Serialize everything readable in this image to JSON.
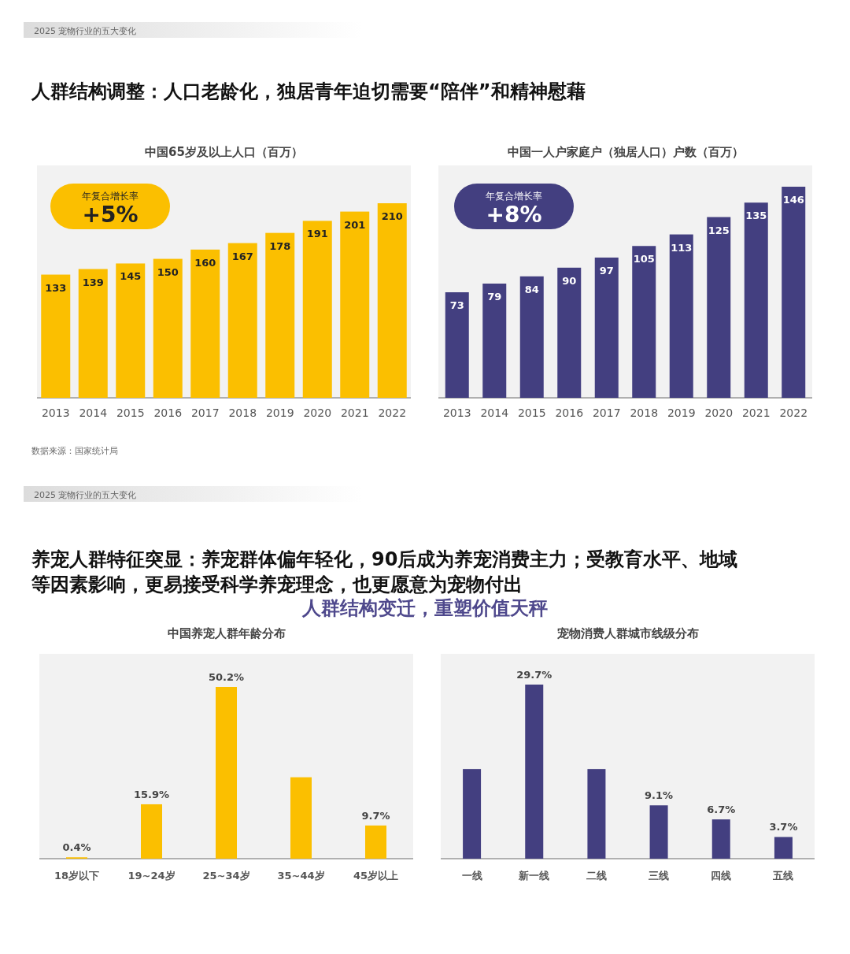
{
  "chart_data": [
    {
      "type": "bar",
      "title": "中国65岁及以上人口（百万）",
      "categories": [
        "2013",
        "2014",
        "2015",
        "2016",
        "2017",
        "2018",
        "2019",
        "2020",
        "2021",
        "2022"
      ],
      "values": [
        133,
        139,
        145,
        150,
        160,
        167,
        178,
        191,
        201,
        210
      ],
      "color": "#fbbf00",
      "data_labels": true,
      "grid": false,
      "annotations": [
        "2025 宠物行业的五大变化",
        "人群结构调整：人口老龄化，独居青年迫切需要“陪伴”和精神慰藉",
        "年复合增长率",
        "+5%"
      ]
    },
    {
      "type": "bar",
      "title": "中国一人户家庭户（独居人口）户数（百万）",
      "categories": [
        "2013",
        "2014",
        "2015",
        "2016",
        "2017",
        "2018",
        "2019",
        "2020",
        "2021",
        "2022"
      ],
      "values": [
        73,
        79,
        84,
        90,
        97,
        105,
        113,
        125,
        135,
        146
      ],
      "color": "#433f80",
      "data_labels": true,
      "grid": false,
      "annotations": [
        "年复合增长率",
        "+8%",
        "数据来源：国家统计局"
      ]
    },
    {
      "type": "bar",
      "title": "中国养宠人群年龄分布",
      "categories": [
        "18岁以下",
        "19~24岁",
        "25~34岁",
        "35~44岁",
        "45岁以上"
      ],
      "values": [
        0.4,
        15.9,
        50.2,
        23.8,
        9.7
      ],
      "value_labels": [
        "0.4%",
        "15.9%",
        "50.2%",
        null,
        "9.7%"
      ],
      "color": "#fbbf00",
      "grid": false,
      "annotations": [
        "2025 宠物行业的五大变化",
        "养宠人群特征突显：养宠群体偏年轻化，90后成为养宠消费主力；受教育水平、地域等因素影响，更易接受科学养宠理念，也更愿意为宠物付出",
        "人群结构变迁，重塑价值天秤"
      ]
    },
    {
      "type": "bar",
      "title": "宠物消费人群城市线级分布",
      "categories": [
        "一线",
        "新一线",
        "二线",
        "三线",
        "四线",
        "五线"
      ],
      "values": [
        15.3,
        29.7,
        15.3,
        9.1,
        6.7,
        3.7
      ],
      "value_labels": [
        null,
        "29.7%",
        null,
        "9.1%",
        "6.7%",
        "3.7%"
      ],
      "color": "#433f80",
      "grid": false
    }
  ]
}
